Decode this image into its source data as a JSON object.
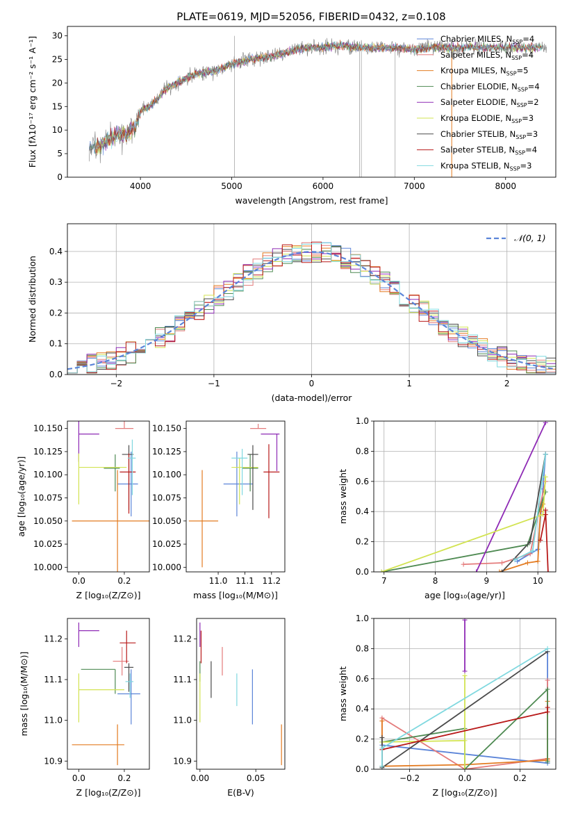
{
  "title": "PLATE=0619, MJD=52056, FIBERID=0432, z=0.108",
  "models": [
    {
      "name": "Chabrier MILES",
      "nssp": "4",
      "color": "#5b84d8"
    },
    {
      "name": "Salpeter MILES",
      "nssp": "4",
      "color": "#e47b7b"
    },
    {
      "name": "Kroupa MILES",
      "nssp": "5",
      "color": "#e37b21"
    },
    {
      "name": "Chabrier ELODIE",
      "nssp": "4",
      "color": "#4e8a52"
    },
    {
      "name": "Salpeter ELODIE",
      "nssp": "2",
      "color": "#8e2ab5"
    },
    {
      "name": "Kroupa ELODIE",
      "nssp": "3",
      "color": "#d2e351"
    },
    {
      "name": "Chabrier STELIB",
      "nssp": "3",
      "color": "#4a4a4a"
    },
    {
      "name": "Salpeter STELIB",
      "nssp": "4",
      "color": "#b81919"
    },
    {
      "name": "Kroupa STELIB",
      "nssp": "3",
      "color": "#7fd8df"
    }
  ],
  "chart_data": [
    {
      "id": "spectrum",
      "type": "line",
      "xlabel": "wavelength [Angstrom, rest frame]",
      "ylabel": "Flux [fλ10⁻¹⁷ erg cm⁻² s⁻¹ A⁻¹]",
      "xlim": [
        3200,
        8550
      ],
      "ylim": [
        0,
        32
      ],
      "xticks": [
        4000,
        5000,
        6000,
        7000,
        8000
      ],
      "yticks": [
        0,
        5,
        10,
        15,
        20,
        25,
        30
      ],
      "continuum": {
        "x": [
          3450,
          3550,
          3650,
          3750,
          3850,
          3950,
          4000,
          4100,
          4200,
          4300,
          4400,
          4600,
          4800,
          5000,
          5200,
          5400,
          5600,
          5800,
          6000,
          6200,
          6400,
          6600,
          6800,
          7000,
          7200,
          7400
        ],
        "y": [
          6.5,
          6.5,
          8,
          9,
          9,
          11,
          14,
          15,
          17,
          19,
          20,
          22,
          22.5,
          24,
          25,
          25.5,
          26.5,
          27.5,
          27.5,
          28,
          27.5,
          27.5,
          27.5,
          27,
          27.5,
          27.5
        ]
      },
      "grid": false,
      "legend": "right"
    },
    {
      "id": "residuals",
      "type": "line",
      "xlabel": "(data-model)/error",
      "ylabel": "Normed distribution",
      "xlim": [
        -2.5,
        2.5
      ],
      "ylim": [
        0,
        0.49
      ],
      "xticks": [
        -2,
        -1,
        0,
        1,
        2
      ],
      "yticks": [
        0.0,
        0.1,
        0.2,
        0.3,
        0.4
      ],
      "reference": "𝒩(0, 1)",
      "grid": true,
      "legend": "top-right"
    },
    {
      "id": "age_vs_Z",
      "type": "scatter",
      "xlabel": "Z [log₁₀(Z/Z⊙)]",
      "ylabel": "age  [log₁₀(age/yr)]",
      "xlim": [
        -0.05,
        0.31
      ],
      "ylim": [
        9.995,
        10.158
      ],
      "xticks": [
        0.0,
        0.2
      ],
      "yticks": [
        10.0,
        10.025,
        10.05,
        10.075,
        10.1,
        10.125,
        10.15
      ],
      "points": [
        {
          "model": "Chabrier MILES",
          "x": 0.23,
          "xerr": [
            0.06,
            0.03
          ],
          "y": 10.09,
          "yerr": [
            0.035,
            0.035
          ]
        },
        {
          "model": "Salpeter MILES",
          "x": 0.2,
          "xerr": [
            0.04,
            0.04
          ],
          "y": 10.15,
          "yerr": [
            0.0,
            0.01
          ]
        },
        {
          "model": "Kroupa MILES",
          "x": 0.17,
          "xerr": [
            0.2,
            0.2
          ],
          "y": 10.05,
          "yerr": [
            0.055,
            0.055
          ]
        },
        {
          "model": "Chabrier ELODIE",
          "x": 0.16,
          "xerr": [
            0.05,
            0.02
          ],
          "y": 10.107,
          "yerr": [
            0.025,
            0.015
          ]
        },
        {
          "model": "Salpeter ELODIE",
          "x": 0.0,
          "xerr": [
            0.0,
            0.09
          ],
          "y": 10.144,
          "yerr": [
            0.03,
            0.02
          ]
        },
        {
          "model": "Kroupa ELODIE",
          "x": 0.0,
          "xerr": [
            0.0,
            0.21
          ],
          "y": 10.108,
          "yerr": [
            0.04,
            0.015
          ]
        },
        {
          "model": "Chabrier STELIB",
          "x": 0.22,
          "xerr": [
            0.03,
            0.02
          ],
          "y": 10.122,
          "yerr": [
            0.06,
            0.01
          ]
        },
        {
          "model": "Salpeter STELIB",
          "x": 0.22,
          "xerr": [
            0.04,
            0.03
          ],
          "y": 10.103,
          "yerr": [
            0.045,
            0.02
          ]
        },
        {
          "model": "Kroupa STELIB",
          "x": 0.235,
          "xerr": [
            0.02,
            0.015
          ],
          "y": 10.118,
          "yerr": [
            0.04,
            0.02
          ]
        }
      ]
    },
    {
      "id": "age_vs_mass",
      "type": "scatter",
      "xlabel": "mass [log₁₀(M/M⊙)]",
      "ylabel": "",
      "xlim": [
        10.88,
        11.25
      ],
      "ylim": [
        9.995,
        10.158
      ],
      "xticks": [
        11.0,
        11.1,
        11.2
      ],
      "yticks": [
        10.0,
        10.025,
        10.05,
        10.075,
        10.1,
        10.125,
        10.15
      ],
      "points": [
        {
          "model": "Chabrier MILES",
          "x": 11.07,
          "xerr": [
            0.05,
            0.06
          ],
          "y": 10.09,
          "yerr": [
            0.035,
            0.035
          ]
        },
        {
          "model": "Salpeter MILES",
          "x": 11.15,
          "xerr": [
            0.03,
            0.03
          ],
          "y": 10.15,
          "yerr": [
            0.0,
            0.005
          ]
        },
        {
          "model": "Kroupa MILES",
          "x": 10.94,
          "xerr": [
            0.05,
            0.06
          ],
          "y": 10.05,
          "yerr": [
            0.05,
            0.055
          ]
        },
        {
          "model": "Chabrier ELODIE",
          "x": 11.12,
          "xerr": [
            0.03,
            0.03
          ],
          "y": 10.107,
          "yerr": [
            0.025,
            0.015
          ]
        },
        {
          "model": "Salpeter ELODIE",
          "x": 11.22,
          "xerr": [
            0.06,
            0.01
          ],
          "y": 10.144,
          "yerr": [
            0.04,
            0.0
          ]
        },
        {
          "model": "Kroupa ELODIE",
          "x": 11.08,
          "xerr": [
            0.03,
            0.07
          ],
          "y": 10.108,
          "yerr": [
            0.04,
            0.01
          ]
        },
        {
          "model": "Chabrier STELIB",
          "x": 11.13,
          "xerr": [
            0.02,
            0.02
          ],
          "y": 10.122,
          "yerr": [
            0.06,
            0.01
          ]
        },
        {
          "model": "Salpeter STELIB",
          "x": 11.19,
          "xerr": [
            0.02,
            0.04
          ],
          "y": 10.103,
          "yerr": [
            0.05,
            0.03
          ]
        },
        {
          "model": "Kroupa STELIB",
          "x": 11.09,
          "xerr": [
            0.04,
            0.02
          ],
          "y": 10.118,
          "yerr": [
            0.04,
            0.01
          ]
        }
      ]
    },
    {
      "id": "weight_vs_age",
      "type": "line",
      "xlabel": "age  [log₁₀(age/yr)]",
      "ylabel": "mass weight",
      "xlim": [
        6.8,
        10.35
      ],
      "ylim": [
        0,
        1
      ],
      "xticks": [
        7,
        8,
        9,
        10
      ],
      "yticks": [
        0.0,
        0.2,
        0.4,
        0.6,
        0.8,
        1.0
      ],
      "grid": true,
      "series": [
        {
          "model": "Chabrier MILES",
          "x": [
            9.6,
            9.85,
            10.0,
            10.1,
            10.15
          ],
          "y": [
            0.07,
            0.12,
            0.15,
            0.55,
            0.78
          ]
        },
        {
          "model": "Salpeter MILES",
          "x": [
            8.55,
            9.3,
            9.85,
            10.05,
            10.15
          ],
          "y": [
            0.05,
            0.06,
            0.12,
            0.45,
            0.6
          ]
        },
        {
          "model": "Kroupa MILES",
          "x": [
            9.25,
            9.8,
            10.0,
            10.05,
            10.1
          ],
          "y": [
            0.0,
            0.06,
            0.07,
            0.4,
            0.45
          ]
        },
        {
          "model": "Chabrier ELODIE",
          "x": [
            6.95,
            9.8,
            10.15
          ],
          "y": [
            0.0,
            0.18,
            0.53
          ]
        },
        {
          "model": "Salpeter ELODIE",
          "x": [
            8.8,
            10.15
          ],
          "y": [
            0.0,
            0.99
          ]
        },
        {
          "model": "Kroupa ELODIE",
          "x": [
            6.95,
            10.1,
            10.15
          ],
          "y": [
            0.0,
            0.38,
            0.63
          ]
        },
        {
          "model": "Chabrier STELIB",
          "x": [
            9.3,
            9.85,
            10.15
          ],
          "y": [
            0.0,
            0.2,
            0.78
          ]
        },
        {
          "model": "Salpeter STELIB",
          "x": [
            10.05,
            10.15,
            10.15,
            10.2
          ],
          "y": [
            0.21,
            0.38,
            0.41,
            0.0
          ]
        },
        {
          "model": "Kroupa STELIB",
          "x": [
            9.55,
            9.9,
            10.15
          ],
          "y": [
            0.08,
            0.14,
            0.78
          ]
        }
      ]
    },
    {
      "id": "mass_vs_Z",
      "type": "scatter",
      "xlabel": "Z [log₁₀(Z/Z⊙)]",
      "ylabel": "mass [log₁₀(M/M⊙)]",
      "xlim": [
        -0.05,
        0.31
      ],
      "ylim": [
        10.88,
        11.25
      ],
      "xticks": [
        0.0,
        0.2
      ],
      "yticks": [
        10.9,
        11.0,
        11.1,
        11.2
      ],
      "points": [
        {
          "model": "Chabrier MILES",
          "x": 0.23,
          "xerr": [
            0.06,
            0.04
          ],
          "y": 11.065,
          "yerr": [
            0.075,
            0.06
          ]
        },
        {
          "model": "Salpeter MILES",
          "x": 0.19,
          "xerr": [
            0.04,
            0.03
          ],
          "y": 11.145,
          "yerr": [
            0.035,
            0.035
          ]
        },
        {
          "model": "Kroupa MILES",
          "x": 0.17,
          "xerr": [
            0.2,
            0.03
          ],
          "y": 10.94,
          "yerr": [
            0.05,
            0.05
          ]
        },
        {
          "model": "Chabrier ELODIE",
          "x": 0.16,
          "xerr": [
            0.15,
            0.0
          ],
          "y": 11.125,
          "yerr": [
            0.06,
            0.0
          ]
        },
        {
          "model": "Salpeter ELODIE",
          "x": 0.0,
          "xerr": [
            0.0,
            0.09
          ],
          "y": 11.22,
          "yerr": [
            0.04,
            0.02
          ]
        },
        {
          "model": "Kroupa ELODIE",
          "x": 0.0,
          "xerr": [
            0.0,
            0.2
          ],
          "y": 11.075,
          "yerr": [
            0.08,
            0.04
          ]
        },
        {
          "model": "Chabrier STELIB",
          "x": 0.22,
          "xerr": [
            0.02,
            0.02
          ],
          "y": 11.13,
          "yerr": [
            0.06,
            0.01
          ]
        },
        {
          "model": "Salpeter STELIB",
          "x": 0.21,
          "xerr": [
            0.03,
            0.04
          ],
          "y": 11.19,
          "yerr": [
            0.05,
            0.03
          ]
        },
        {
          "model": "Kroupa STELIB",
          "x": 0.225,
          "xerr": [
            0.02,
            0.015
          ],
          "y": 11.095,
          "yerr": [
            0.04,
            0.02
          ]
        }
      ]
    },
    {
      "id": "mass_vs_ebv",
      "type": "scatter",
      "xlabel": "E(B-V)",
      "ylabel": "",
      "xlim": [
        -0.003,
        0.076
      ],
      "ylim": [
        10.88,
        11.25
      ],
      "xticks": [
        0.0,
        0.05
      ],
      "yticks": [
        10.9,
        11.0,
        11.1,
        11.2
      ],
      "points": [
        {
          "model": "Chabrier MILES",
          "x": 0.047,
          "y": 11.065,
          "yerr": [
            0.075,
            0.06
          ]
        },
        {
          "model": "Salpeter MILES",
          "x": 0.02,
          "y": 11.145,
          "yerr": [
            0.035,
            0.035
          ]
        },
        {
          "model": "Kroupa MILES",
          "x": 0.073,
          "y": 10.94,
          "yerr": [
            0.05,
            0.05
          ]
        },
        {
          "model": "Chabrier ELODIE",
          "x": 0.0,
          "y": 11.125,
          "yerr": [
            0.03,
            0.02
          ]
        },
        {
          "model": "Salpeter ELODIE",
          "x": 0.0,
          "y": 11.22,
          "yerr": [
            0.04,
            0.02
          ]
        },
        {
          "model": "Kroupa ELODIE",
          "x": 0.0,
          "y": 11.075,
          "yerr": [
            0.08,
            0.04
          ]
        },
        {
          "model": "Chabrier STELIB",
          "x": 0.01,
          "y": 11.1,
          "yerr": [
            0.045,
            0.045
          ]
        },
        {
          "model": "Salpeter STELIB",
          "x": 0.001,
          "y": 11.19,
          "yerr": [
            0.05,
            0.03
          ]
        },
        {
          "model": "Kroupa STELIB",
          "x": 0.033,
          "y": 11.075,
          "yerr": [
            0.04,
            0.04
          ]
        }
      ]
    },
    {
      "id": "weight_vs_Z",
      "type": "line",
      "xlabel": "Z [log₁₀(Z/Z⊙)]",
      "ylabel": "mass weight",
      "xlim": [
        -0.33,
        0.33
      ],
      "ylim": [
        0,
        1
      ],
      "xticks": [
        -0.2,
        0.0,
        0.2
      ],
      "yticks": [
        0.0,
        0.2,
        0.4,
        0.6,
        0.8,
        1.0
      ],
      "grid": true,
      "series": [
        {
          "model": "Chabrier MILES",
          "x": [
            -0.3,
            -0.3,
            0.3,
            0.3
          ],
          "y": [
            0.02,
            0.16,
            0.04,
            0.78
          ]
        },
        {
          "model": "Salpeter MILES",
          "x": [
            -0.3,
            -0.3,
            0.0,
            0.3,
            0.3
          ],
          "y": [
            0.0,
            0.34,
            0.0,
            0.07,
            0.59
          ]
        },
        {
          "model": "Kroupa MILES",
          "x": [
            -0.3,
            -0.3,
            0.0,
            0.3,
            0.3,
            0.3
          ],
          "y": [
            0.32,
            0.02,
            0.03,
            0.06,
            0.07,
            0.45
          ]
        },
        {
          "model": "Chabrier ELODIE",
          "x": [
            -0.3,
            0.0,
            0.0,
            0.3,
            0.3
          ],
          "y": [
            0.18,
            0.27,
            0.0,
            0.53,
            0.05
          ]
        },
        {
          "model": "Salpeter ELODIE",
          "x": [
            0.0,
            0.0
          ],
          "y": [
            0.65,
            0.99
          ]
        },
        {
          "model": "Kroupa ELODIE",
          "x": [
            -0.3,
            0.0,
            0.0,
            0.0
          ],
          "y": [
            0.18,
            0.19,
            0.62,
            0.0
          ]
        },
        {
          "model": "Chabrier STELIB",
          "x": [
            -0.3,
            -0.3,
            0.3
          ],
          "y": [
            0.21,
            0.01,
            0.78
          ]
        },
        {
          "model": "Salpeter STELIB",
          "x": [
            -0.3,
            0.3,
            0.3
          ],
          "y": [
            0.13,
            0.38,
            0.41
          ]
        },
        {
          "model": "Kroupa STELIB",
          "x": [
            -0.3,
            -0.3,
            0.3
          ],
          "y": [
            0.02,
            0.14,
            0.8
          ]
        }
      ]
    }
  ]
}
